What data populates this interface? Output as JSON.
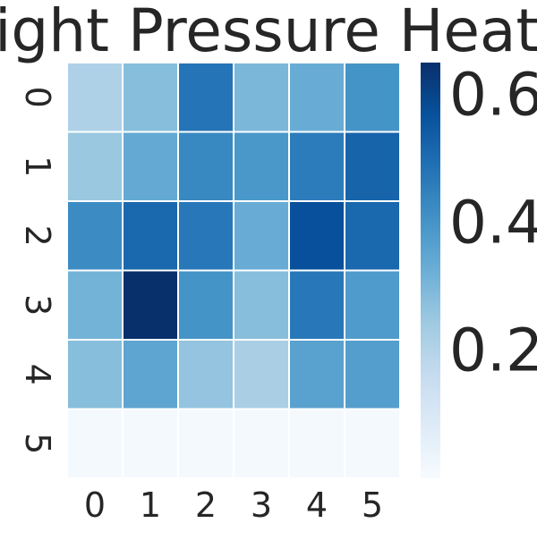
{
  "chart_data": {
    "type": "heatmap",
    "title": "Bottom-right Pressure Heatmap",
    "xlabel": "",
    "ylabel": "",
    "x_tick_labels": [
      "0",
      "1",
      "2",
      "3",
      "4",
      "5"
    ],
    "y_tick_labels": [
      "0",
      "1",
      "2",
      "3",
      "4",
      "5"
    ],
    "values": [
      [
        0.21,
        0.28,
        0.48,
        0.3,
        0.33,
        0.4
      ],
      [
        0.25,
        0.34,
        0.43,
        0.39,
        0.46,
        0.52
      ],
      [
        0.42,
        0.51,
        0.47,
        0.33,
        0.57,
        0.51
      ],
      [
        0.31,
        0.65,
        0.4,
        0.28,
        0.47,
        0.38
      ],
      [
        0.28,
        0.35,
        0.26,
        0.22,
        0.36,
        0.37
      ],
      [
        0.01,
        0.01,
        0.01,
        0.01,
        0.01,
        0.01
      ]
    ],
    "colorbar": {
      "min": 0.0,
      "max": 0.65,
      "tick_values": [
        0.2,
        0.4,
        0.6
      ],
      "tick_labels": [
        "0.2",
        "0.4",
        "0.6"
      ]
    },
    "colormap": "Blues",
    "colormap_stops": [
      "#f7fbff",
      "#deebf7",
      "#c6dbef",
      "#9ecae1",
      "#6baed6",
      "#4292c6",
      "#2171b5",
      "#08519c",
      "#08306b"
    ],
    "cell_border_color": "#ffffff",
    "grid": false,
    "legend": "colorbar-right"
  }
}
